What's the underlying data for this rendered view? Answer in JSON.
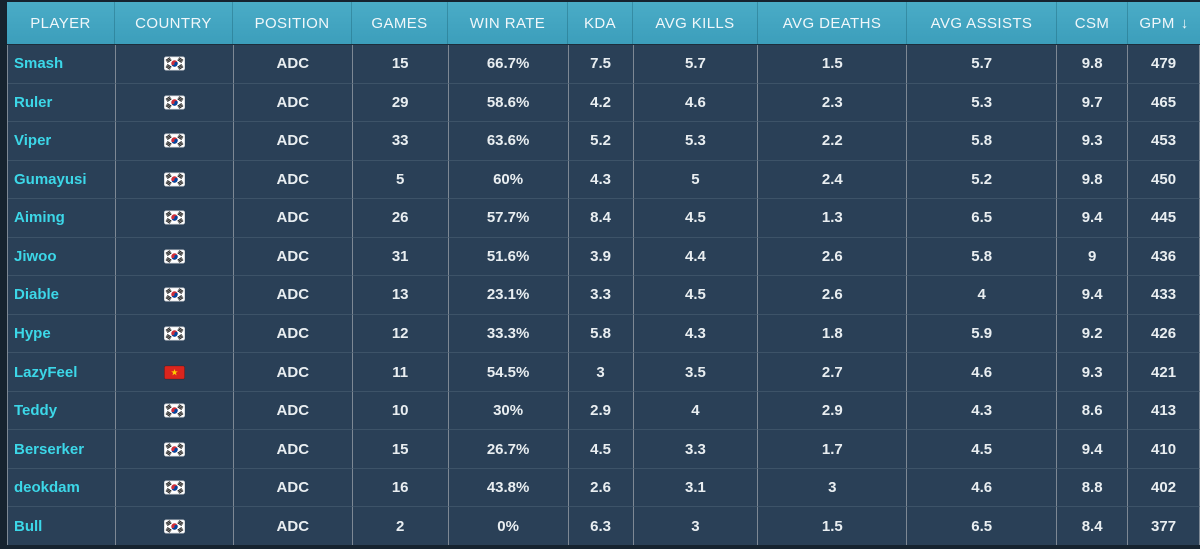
{
  "colors": {
    "page_bg": "#16232f",
    "row_bg": "#2a4057",
    "header_teal_top": "#4aacc7",
    "header_teal_bottom": "#3c9ebb",
    "separator_gray": "#7d8894",
    "header_text": "#f0f7fa",
    "cell_text": "#e9eef1",
    "accent_cyan": "#3cd7e8",
    "flag_kr_red": "#cd2e3a",
    "flag_kr_blue": "#0047a0",
    "flag_kr_black": "#212121",
    "flag_vn_red": "#da251d",
    "flag_vn_yellow": "#ffcd00"
  },
  "table": {
    "columns": [
      {
        "key": "player",
        "label": "PLAYER"
      },
      {
        "key": "country",
        "label": "COUNTRY"
      },
      {
        "key": "position",
        "label": "POSITION"
      },
      {
        "key": "games",
        "label": "GAMES"
      },
      {
        "key": "win_rate",
        "label": "WIN RATE"
      },
      {
        "key": "kda",
        "label": "KDA"
      },
      {
        "key": "avg_kills",
        "label": "AVG KILLS"
      },
      {
        "key": "avg_deaths",
        "label": "AVG DEATHS"
      },
      {
        "key": "avg_assists",
        "label": "AVG ASSISTS"
      },
      {
        "key": "csm",
        "label": "CSM"
      },
      {
        "key": "gpm",
        "label": "GPM"
      }
    ],
    "sort": {
      "column": "GPM",
      "direction": "descending",
      "icon": "sort-descending-arrow-icon",
      "glyph": "↓"
    },
    "rows": [
      {
        "player": "Smash",
        "country": "south-korea",
        "country_flag": "south-korea-flag-icon",
        "position": "ADC",
        "games": "15",
        "win_rate": "66.7%",
        "kda": "7.5",
        "avg_kills": "5.7",
        "avg_deaths": "1.5",
        "avg_assists": "5.7",
        "csm": "9.8",
        "gpm": "479"
      },
      {
        "player": "Ruler",
        "country": "south-korea",
        "country_flag": "south-korea-flag-icon",
        "position": "ADC",
        "games": "29",
        "win_rate": "58.6%",
        "kda": "4.2",
        "avg_kills": "4.6",
        "avg_deaths": "2.3",
        "avg_assists": "5.3",
        "csm": "9.7",
        "gpm": "465"
      },
      {
        "player": "Viper",
        "country": "south-korea",
        "country_flag": "south-korea-flag-icon",
        "position": "ADC",
        "games": "33",
        "win_rate": "63.6%",
        "kda": "5.2",
        "avg_kills": "5.3",
        "avg_deaths": "2.2",
        "avg_assists": "5.8",
        "csm": "9.3",
        "gpm": "453"
      },
      {
        "player": "Gumayusi",
        "country": "south-korea",
        "country_flag": "south-korea-flag-icon",
        "position": "ADC",
        "games": "5",
        "win_rate": "60%",
        "kda": "4.3",
        "avg_kills": "5",
        "avg_deaths": "2.4",
        "avg_assists": "5.2",
        "csm": "9.8",
        "gpm": "450"
      },
      {
        "player": "Aiming",
        "country": "south-korea",
        "country_flag": "south-korea-flag-icon",
        "position": "ADC",
        "games": "26",
        "win_rate": "57.7%",
        "kda": "8.4",
        "avg_kills": "4.5",
        "avg_deaths": "1.3",
        "avg_assists": "6.5",
        "csm": "9.4",
        "gpm": "445"
      },
      {
        "player": "Jiwoo",
        "country": "south-korea",
        "country_flag": "south-korea-flag-icon",
        "position": "ADC",
        "games": "31",
        "win_rate": "51.6%",
        "kda": "3.9",
        "avg_kills": "4.4",
        "avg_deaths": "2.6",
        "avg_assists": "5.8",
        "csm": "9",
        "gpm": "436"
      },
      {
        "player": "Diable",
        "country": "south-korea",
        "country_flag": "south-korea-flag-icon",
        "position": "ADC",
        "games": "13",
        "win_rate": "23.1%",
        "kda": "3.3",
        "avg_kills": "4.5",
        "avg_deaths": "2.6",
        "avg_assists": "4",
        "csm": "9.4",
        "gpm": "433"
      },
      {
        "player": "Hype",
        "country": "south-korea",
        "country_flag": "south-korea-flag-icon",
        "position": "ADC",
        "games": "12",
        "win_rate": "33.3%",
        "kda": "5.8",
        "avg_kills": "4.3",
        "avg_deaths": "1.8",
        "avg_assists": "5.9",
        "csm": "9.2",
        "gpm": "426"
      },
      {
        "player": "LazyFeel",
        "country": "vietnam",
        "country_flag": "vietnam-flag-icon",
        "position": "ADC",
        "games": "11",
        "win_rate": "54.5%",
        "kda": "3",
        "avg_kills": "3.5",
        "avg_deaths": "2.7",
        "avg_assists": "4.6",
        "csm": "9.3",
        "gpm": "421"
      },
      {
        "player": "Teddy",
        "country": "south-korea",
        "country_flag": "south-korea-flag-icon",
        "position": "ADC",
        "games": "10",
        "win_rate": "30%",
        "kda": "2.9",
        "avg_kills": "4",
        "avg_deaths": "2.9",
        "avg_assists": "4.3",
        "csm": "8.6",
        "gpm": "413"
      },
      {
        "player": "Berserker",
        "country": "south-korea",
        "country_flag": "south-korea-flag-icon",
        "position": "ADC",
        "games": "15",
        "win_rate": "26.7%",
        "kda": "4.5",
        "avg_kills": "3.3",
        "avg_deaths": "1.7",
        "avg_assists": "4.5",
        "csm": "9.4",
        "gpm": "410"
      },
      {
        "player": "deokdam",
        "country": "south-korea",
        "country_flag": "south-korea-flag-icon",
        "position": "ADC",
        "games": "16",
        "win_rate": "43.8%",
        "kda": "2.6",
        "avg_kills": "3.1",
        "avg_deaths": "3",
        "avg_assists": "4.6",
        "csm": "8.8",
        "gpm": "402"
      },
      {
        "player": "Bull",
        "country": "south-korea",
        "country_flag": "south-korea-flag-icon",
        "position": "ADC",
        "games": "2",
        "win_rate": "0%",
        "kda": "6.3",
        "avg_kills": "3",
        "avg_deaths": "1.5",
        "avg_assists": "6.5",
        "csm": "8.4",
        "gpm": "377"
      }
    ]
  }
}
